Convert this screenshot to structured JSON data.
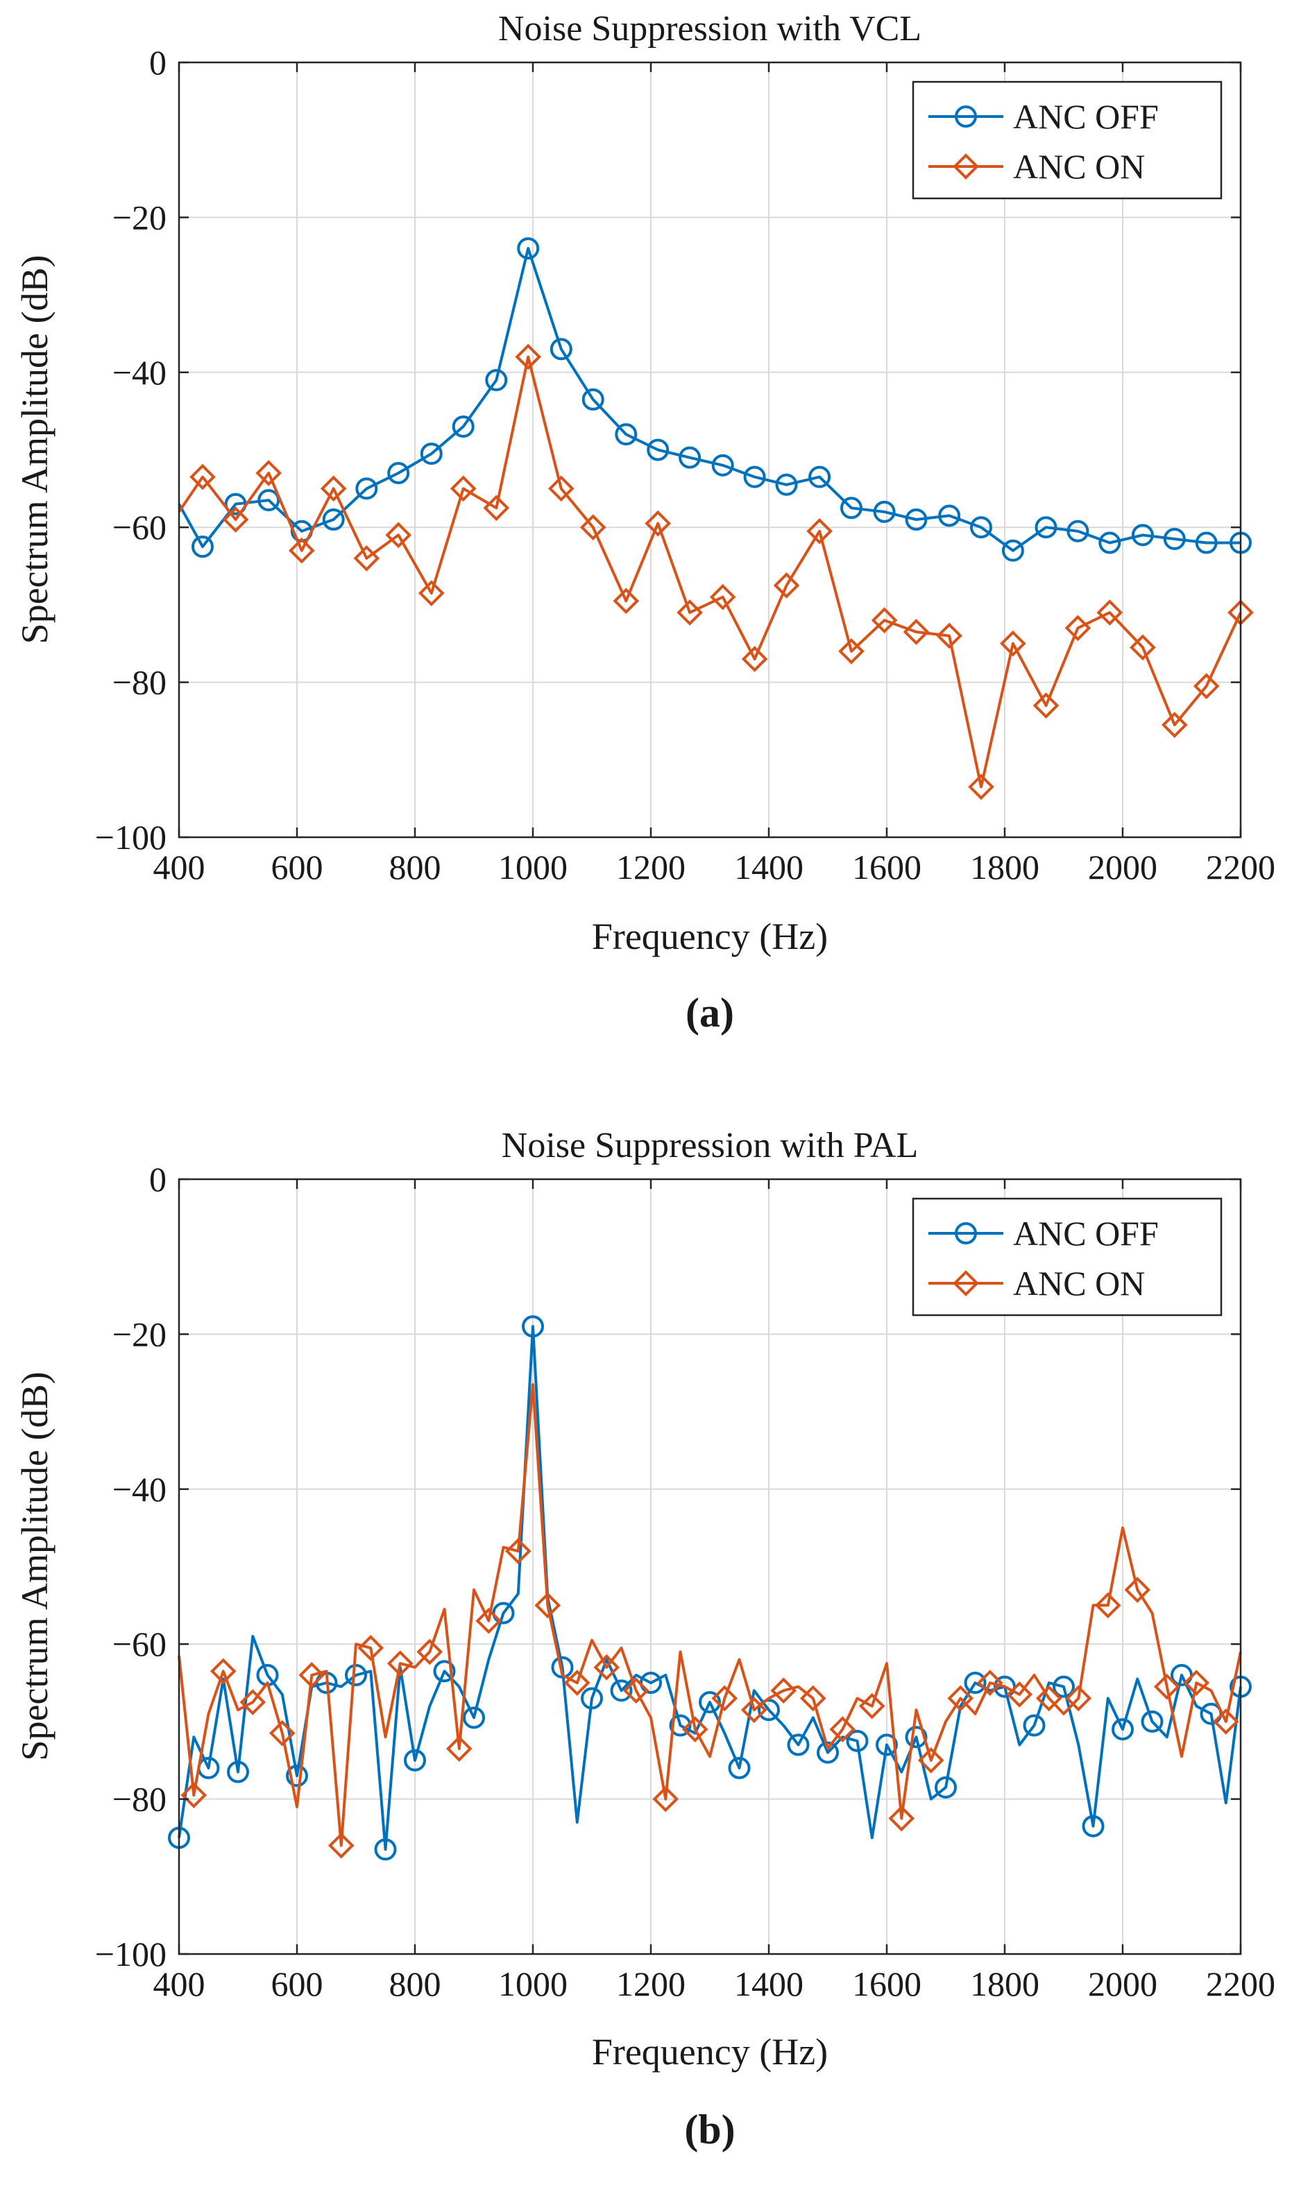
{
  "colors": {
    "off": "#0072BD",
    "on": "#D95319",
    "grid": "#d9d9d9",
    "axis": "#262626"
  },
  "chart_data": [
    {
      "type": "line",
      "title": "Noise Suppression with VCL",
      "xlabel": "Frequency (Hz)",
      "ylabel": "Spectrum Amplitude (dB)",
      "caption": "(a)",
      "xlim": [
        400,
        2200
      ],
      "ylim": [
        -100,
        0
      ],
      "xticks": [
        400,
        600,
        800,
        1000,
        1200,
        1400,
        1600,
        1800,
        2000,
        2200
      ],
      "yticks": [
        0,
        -20,
        -40,
        -60,
        -80,
        -100
      ],
      "ytick_labels": [
        "0",
        "−20",
        "−40",
        "−60",
        "−80",
        "−100"
      ],
      "grid": true,
      "legend_position": "top-right",
      "series": [
        {
          "name": "ANC OFF",
          "marker": "circle",
          "color_key": "off",
          "x": [
            400,
            440,
            496,
            552,
            608,
            662,
            718,
            772,
            828,
            882,
            938,
            992,
            1048,
            1102,
            1158,
            1212,
            1266,
            1322,
            1376,
            1430,
            1486,
            1540,
            1596,
            1650,
            1706,
            1760,
            1814,
            1870,
            1924,
            1978,
            2034,
            2088,
            2142,
            2200
          ],
          "values": [
            -57,
            -62.5,
            -57,
            -56.5,
            -60.5,
            -59,
            -55,
            -53,
            -50.5,
            -47,
            -41,
            -24,
            -37,
            -43.5,
            -48,
            -50,
            -51,
            -52,
            -53.5,
            -54.5,
            -53.5,
            -57.5,
            -58,
            -59,
            -58.5,
            -60,
            -63,
            -60,
            -60.5,
            -62,
            -61,
            -61.5,
            -62,
            -62
          ],
          "marker_from_index": 1
        },
        {
          "name": "ANC ON",
          "marker": "diamond",
          "color_key": "on",
          "x": [
            400,
            440,
            496,
            552,
            608,
            662,
            718,
            772,
            828,
            882,
            938,
            992,
            1048,
            1102,
            1158,
            1212,
            1266,
            1322,
            1376,
            1430,
            1486,
            1540,
            1596,
            1650,
            1706,
            1760,
            1814,
            1870,
            1924,
            1978,
            2034,
            2088,
            2142,
            2200
          ],
          "values": [
            -58,
            -53.5,
            -59,
            -53,
            -63,
            -55,
            -64,
            -61,
            -68.5,
            -55,
            -57.5,
            -38,
            -55,
            -60,
            -69.5,
            -59.5,
            -71,
            -69,
            -77,
            -67.5,
            -60.5,
            -76,
            -72,
            -73.5,
            -74,
            -93.5,
            -75,
            -83,
            -73,
            -71,
            -75.5,
            -85.5,
            -80.5,
            -71
          ],
          "marker_from_index": 1
        }
      ]
    },
    {
      "type": "line",
      "title": "Noise Suppression with PAL",
      "xlabel": "Frequency (Hz)",
      "ylabel": "Spectrum Amplitude (dB)",
      "caption": "(b)",
      "xlim": [
        400,
        2200
      ],
      "ylim": [
        -100,
        0
      ],
      "xticks": [
        400,
        600,
        800,
        1000,
        1200,
        1400,
        1600,
        1800,
        2000,
        2200
      ],
      "yticks": [
        0,
        -20,
        -40,
        -60,
        -80,
        -100
      ],
      "ytick_labels": [
        "0",
        "−20",
        "−40",
        "−60",
        "−80",
        "−100"
      ],
      "grid": true,
      "legend_position": "top-right",
      "series": [
        {
          "name": "ANC OFF",
          "marker": "circle",
          "color_key": "off",
          "x": [
            400,
            425,
            450,
            475,
            500,
            525,
            550,
            575,
            600,
            625,
            650,
            675,
            700,
            725,
            750,
            775,
            800,
            825,
            850,
            875,
            900,
            925,
            950,
            975,
            1000,
            1025,
            1050,
            1075,
            1100,
            1125,
            1150,
            1175,
            1200,
            1225,
            1250,
            1275,
            1300,
            1325,
            1350,
            1375,
            1400,
            1425,
            1450,
            1475,
            1500,
            1525,
            1550,
            1575,
            1600,
            1625,
            1650,
            1675,
            1700,
            1725,
            1750,
            1775,
            1800,
            1825,
            1850,
            1875,
            1900,
            1925,
            1950,
            1975,
            2000,
            2025,
            2050,
            2075,
            2100,
            2125,
            2150,
            2175,
            2200
          ],
          "values": [
            -85,
            -72,
            -76,
            -64.5,
            -76.5,
            -59,
            -64,
            -66.5,
            -77,
            -65.5,
            -65,
            -65.5,
            -64,
            -63.5,
            -86.5,
            -63,
            -75,
            -68,
            -63.5,
            -65.5,
            -69.5,
            -62,
            -56,
            -53.5,
            -19,
            -54,
            -63,
            -83,
            -67,
            -62,
            -66,
            -64,
            -65,
            -64,
            -70.5,
            -71.5,
            -67.5,
            -71.5,
            -76,
            -66,
            -68.5,
            -70.5,
            -73,
            -69.5,
            -74,
            -72,
            -72.5,
            -85,
            -73,
            -76.5,
            -72,
            -80,
            -78.5,
            -68,
            -65,
            -66,
            -65.5,
            -73,
            -70.5,
            -65,
            -65.5,
            -73,
            -83.5,
            -67,
            -71,
            -64.5,
            -70,
            -72,
            -64,
            -68,
            -69,
            -80.5,
            -65.5
          ],
          "marker_every": 2
        },
        {
          "name": "ANC ON",
          "marker": "diamond",
          "color_key": "on",
          "x": [
            400,
            425,
            450,
            475,
            500,
            525,
            550,
            575,
            600,
            625,
            650,
            675,
            700,
            725,
            750,
            775,
            800,
            825,
            850,
            875,
            900,
            925,
            950,
            975,
            1000,
            1025,
            1050,
            1075,
            1100,
            1125,
            1150,
            1175,
            1200,
            1225,
            1250,
            1275,
            1300,
            1325,
            1350,
            1375,
            1400,
            1425,
            1450,
            1475,
            1500,
            1525,
            1550,
            1575,
            1600,
            1625,
            1650,
            1675,
            1700,
            1725,
            1750,
            1775,
            1800,
            1825,
            1850,
            1875,
            1900,
            1925,
            1950,
            1975,
            2000,
            2025,
            2050,
            2075,
            2100,
            2125,
            2150,
            2175,
            2200
          ],
          "values": [
            -61.5,
            -79.5,
            -69,
            -63.5,
            -68.5,
            -67.5,
            -65,
            -71.5,
            -81,
            -64,
            -63.5,
            -86,
            -60,
            -60.5,
            -72,
            -62.5,
            -63,
            -61,
            -55.5,
            -73.5,
            -53,
            -57,
            -47.5,
            -48,
            -26.5,
            -55,
            -64,
            -65,
            -59.5,
            -63,
            -60.5,
            -66,
            -69.5,
            -80,
            -61,
            -71,
            -74.5,
            -67,
            -62,
            -68.5,
            -67,
            -66,
            -65.5,
            -67,
            -73.5,
            -71,
            -67,
            -68,
            -62.5,
            -82.5,
            -68.5,
            -75,
            -70,
            -67,
            -69,
            -65,
            -65.5,
            -66.5,
            -64,
            -67,
            -69,
            -67,
            -55,
            -55,
            -45,
            -53,
            -56,
            -65.5,
            -74.5,
            -65,
            -66,
            -70,
            -61
          ],
          "marker_every": 2,
          "marker_offset": 1
        }
      ]
    }
  ]
}
